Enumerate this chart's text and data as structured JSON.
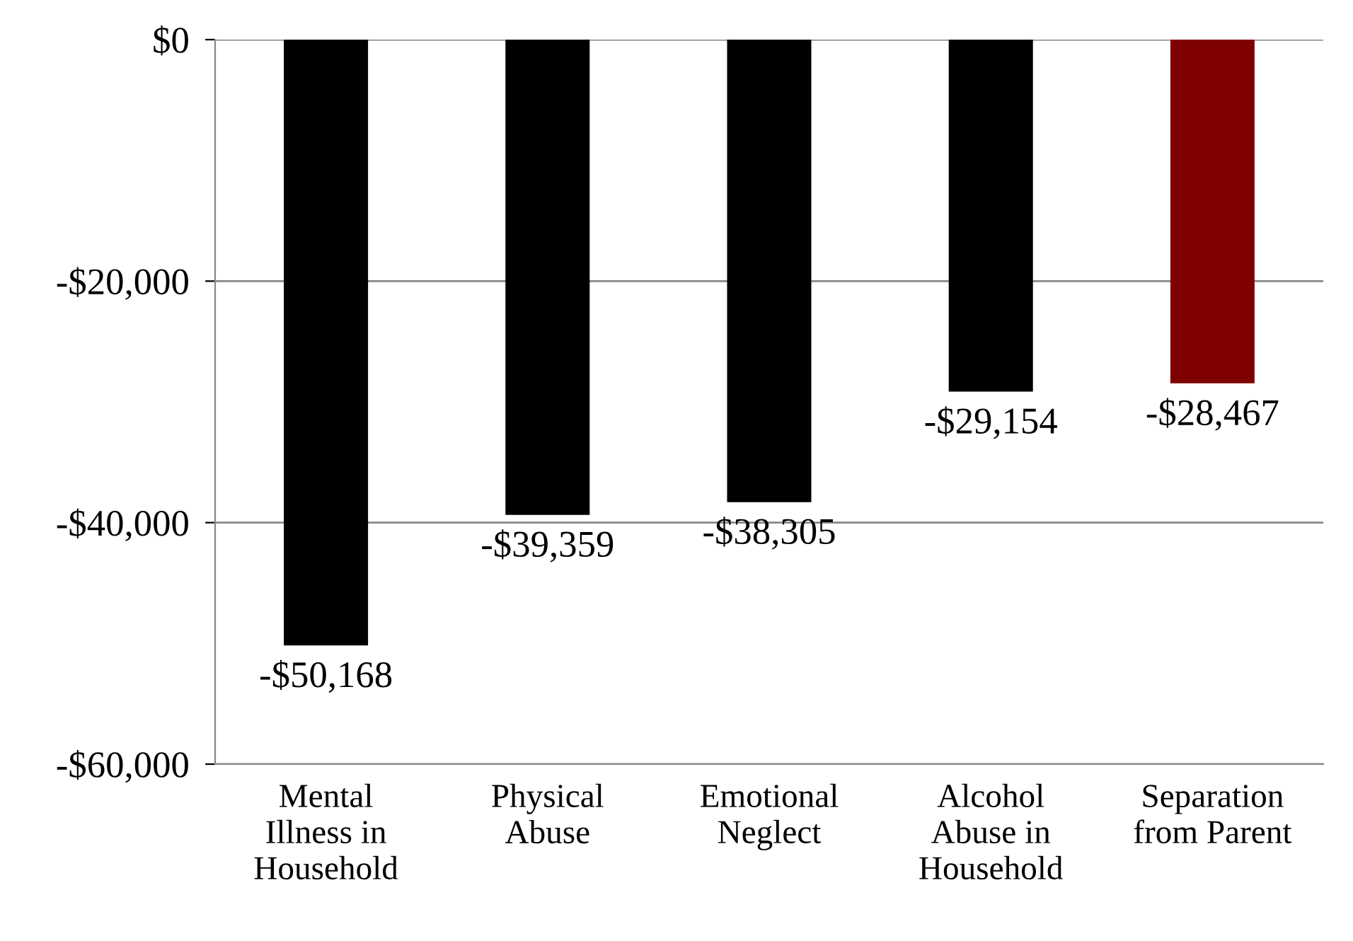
{
  "chart_data": {
    "type": "bar",
    "categories": [
      "Mental\nIllness in\nHousehold",
      "Physical\nAbuse",
      "Emotional\nNeglect",
      "Alcohol\nAbuse in\nHousehold",
      "Separation\nfrom Parent"
    ],
    "values": [
      -50168,
      -39359,
      -38305,
      -29154,
      -28467
    ],
    "colors": [
      "#000000",
      "#000000",
      "#000000",
      "#000000",
      "#7f0000"
    ],
    "value_labels": [
      "-$50,168",
      "-$39,359",
      "-$38,305",
      "-$29,154",
      "-$28,467"
    ],
    "ylim": [
      -60000,
      0
    ],
    "yticks": [
      {
        "value": -60000,
        "label": "-$60,000"
      },
      {
        "value": -40000,
        "label": "-$40,000"
      },
      {
        "value": -20000,
        "label": "-$20,000"
      },
      {
        "value": 0,
        "label": "$0"
      }
    ],
    "grid": "y",
    "legend": false
  }
}
